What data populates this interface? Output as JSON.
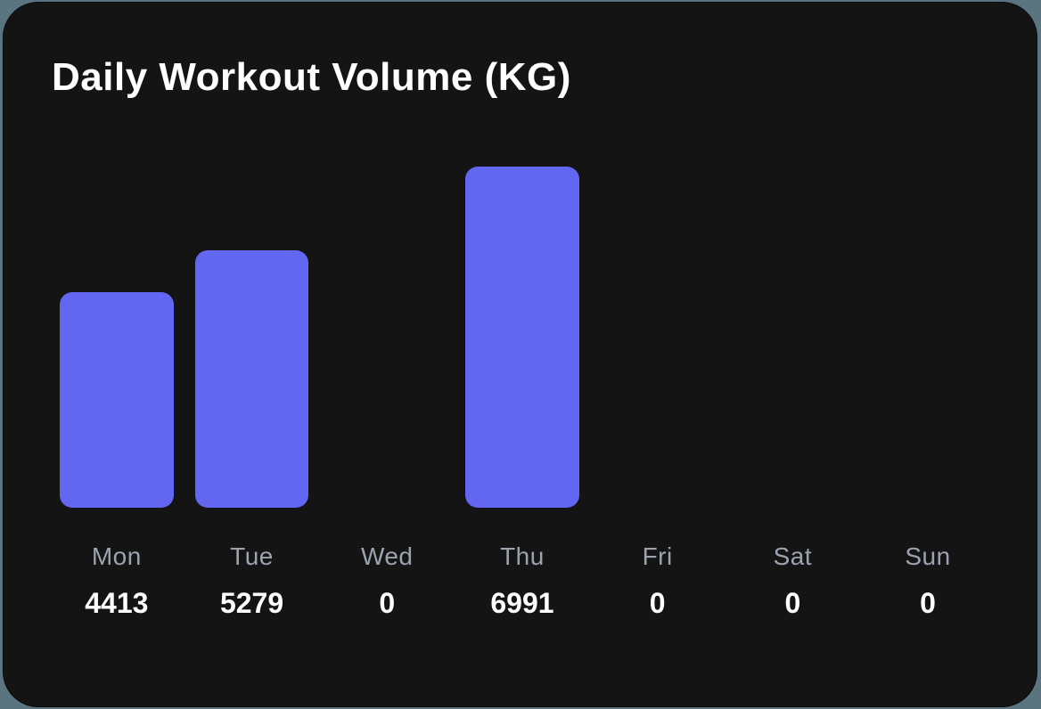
{
  "title": "Daily Workout Volume (KG)",
  "colors": {
    "bar": "#6366f1",
    "card": "#141414",
    "label": "#9ca3af",
    "value": "#ffffff"
  },
  "days": [
    {
      "label": "Mon",
      "value": "4413"
    },
    {
      "label": "Tue",
      "value": "5279"
    },
    {
      "label": "Wed",
      "value": "0"
    },
    {
      "label": "Thu",
      "value": "6991"
    },
    {
      "label": "Fri",
      "value": "0"
    },
    {
      "label": "Sat",
      "value": "0"
    },
    {
      "label": "Sun",
      "value": "0"
    }
  ],
  "chart_data": {
    "type": "bar",
    "title": "Daily Workout Volume (KG)",
    "categories": [
      "Mon",
      "Tue",
      "Wed",
      "Thu",
      "Fri",
      "Sat",
      "Sun"
    ],
    "values": [
      4413,
      5279,
      0,
      6991,
      0,
      0,
      0
    ],
    "xlabel": "",
    "ylabel": "",
    "ylim": [
      0,
      6991
    ],
    "grid": false,
    "legend": null
  }
}
